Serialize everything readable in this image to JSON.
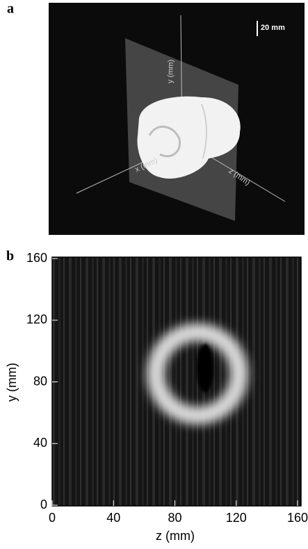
{
  "panels": [
    {
      "label": "a",
      "scale_bar": "20 mm",
      "x_label": "x (mm)",
      "y_label": "y (mm)",
      "z_label": "z (mm)"
    },
    {
      "label": "b",
      "x_label": "z (mm)",
      "y_label": "y (mm)",
      "xlim": [
        0,
        160
      ],
      "ylim": [
        0,
        160
      ],
      "xticks": [
        0,
        40,
        80,
        120,
        160
      ],
      "yticks": [
        0,
        40,
        80,
        120,
        160
      ]
    }
  ]
}
